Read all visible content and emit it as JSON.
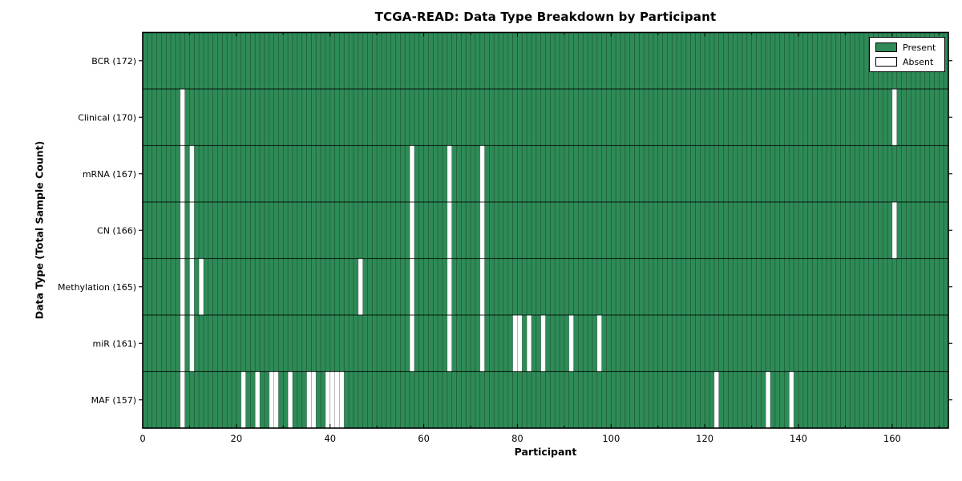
{
  "chart_data": {
    "type": "heatmap",
    "title": "TCGA-READ: Data Type Breakdown by Participant",
    "xlabel": "Participant",
    "ylabel": "Data Type (Total Sample Count)",
    "n_participants": 172,
    "xlim": [
      0,
      172
    ],
    "x_ticks": [
      0,
      20,
      40,
      60,
      80,
      100,
      120,
      140,
      160
    ],
    "x_minor_tick_step": 10,
    "grid": true,
    "legend_position": "upper right",
    "legend": [
      {
        "label": "Present",
        "key": "present"
      },
      {
        "label": "Absent",
        "key": "absent"
      }
    ],
    "colors": {
      "present": "#2e8b57",
      "absent": "#ffffff",
      "cell_edge": "rgba(0,0,0,0.38)",
      "row_edge": "rgba(0,0,0,0.65)",
      "spine": "#000000",
      "text": "#000000",
      "background": "#ffffff"
    },
    "rows": [
      {
        "label": "BCR (172)",
        "name": "BCR",
        "present_count": 172,
        "absent_participants": []
      },
      {
        "label": "Clinical (170)",
        "name": "Clinical",
        "present_count": 170,
        "absent_participants": [
          8,
          160
        ]
      },
      {
        "label": "mRNA (167)",
        "name": "mRNA",
        "present_count": 167,
        "absent_participants": [
          8,
          10,
          57,
          65,
          72
        ]
      },
      {
        "label": "CN (166)",
        "name": "CN",
        "present_count": 166,
        "absent_participants": [
          8,
          10,
          57,
          65,
          72,
          160
        ]
      },
      {
        "label": "Methylation (165)",
        "name": "Methylation",
        "present_count": 165,
        "absent_participants": [
          8,
          10,
          12,
          46,
          57,
          65,
          72
        ]
      },
      {
        "label": "miR (161)",
        "name": "miR",
        "present_count": 161,
        "absent_participants": [
          8,
          10,
          57,
          65,
          72,
          79,
          80,
          82,
          85,
          91,
          97
        ]
      },
      {
        "label": "MAF (157)",
        "name": "MAF",
        "present_count": 157,
        "absent_participants": [
          8,
          21,
          24,
          27,
          28,
          31,
          35,
          36,
          39,
          40,
          41,
          42,
          122,
          133,
          138
        ]
      }
    ]
  }
}
